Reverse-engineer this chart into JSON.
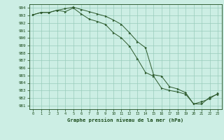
{
  "title": "Graphe pression niveau de la mer (hPa)",
  "bg_color": "#cceee4",
  "grid_color": "#99ccbb",
  "line_color": "#2d5a2d",
  "marker_color": "#2d5a2d",
  "axis_label_color": "#1a4a1a",
  "tick_label_color": "#1a4a1a",
  "xlim": [
    -0.5,
    23.5
  ],
  "ylim": [
    980.5,
    994.5
  ],
  "xticks": [
    0,
    1,
    2,
    3,
    4,
    5,
    6,
    7,
    8,
    9,
    10,
    11,
    12,
    13,
    14,
    15,
    16,
    17,
    18,
    19,
    20,
    21,
    22,
    23
  ],
  "yticks": [
    981,
    982,
    983,
    984,
    985,
    986,
    987,
    988,
    989,
    990,
    991,
    992,
    993,
    994
  ],
  "series1_x": [
    0,
    1,
    2,
    3,
    4,
    5,
    6,
    7,
    8,
    9,
    10,
    11,
    12,
    13,
    14,
    15,
    16,
    17,
    18,
    19,
    20,
    21,
    22,
    23
  ],
  "series1_y": [
    993.1,
    993.4,
    993.4,
    993.7,
    993.9,
    994.1,
    993.8,
    993.5,
    993.2,
    992.9,
    992.4,
    991.8,
    990.7,
    989.5,
    988.7,
    985.1,
    984.9,
    983.5,
    983.2,
    982.7,
    981.2,
    981.2,
    982.1,
    982.5
  ],
  "series2_x": [
    0,
    1,
    2,
    3,
    4,
    5,
    6,
    7,
    8,
    9,
    10,
    11,
    12,
    13,
    14,
    15,
    16,
    17,
    18,
    19,
    20,
    21,
    22,
    23
  ],
  "series2_y": [
    993.1,
    993.4,
    993.4,
    993.7,
    993.5,
    994.0,
    993.2,
    992.5,
    992.2,
    991.8,
    990.7,
    990.0,
    988.9,
    987.2,
    985.4,
    984.9,
    983.3,
    983.0,
    982.8,
    982.5,
    981.2,
    981.5,
    981.9,
    982.6
  ]
}
